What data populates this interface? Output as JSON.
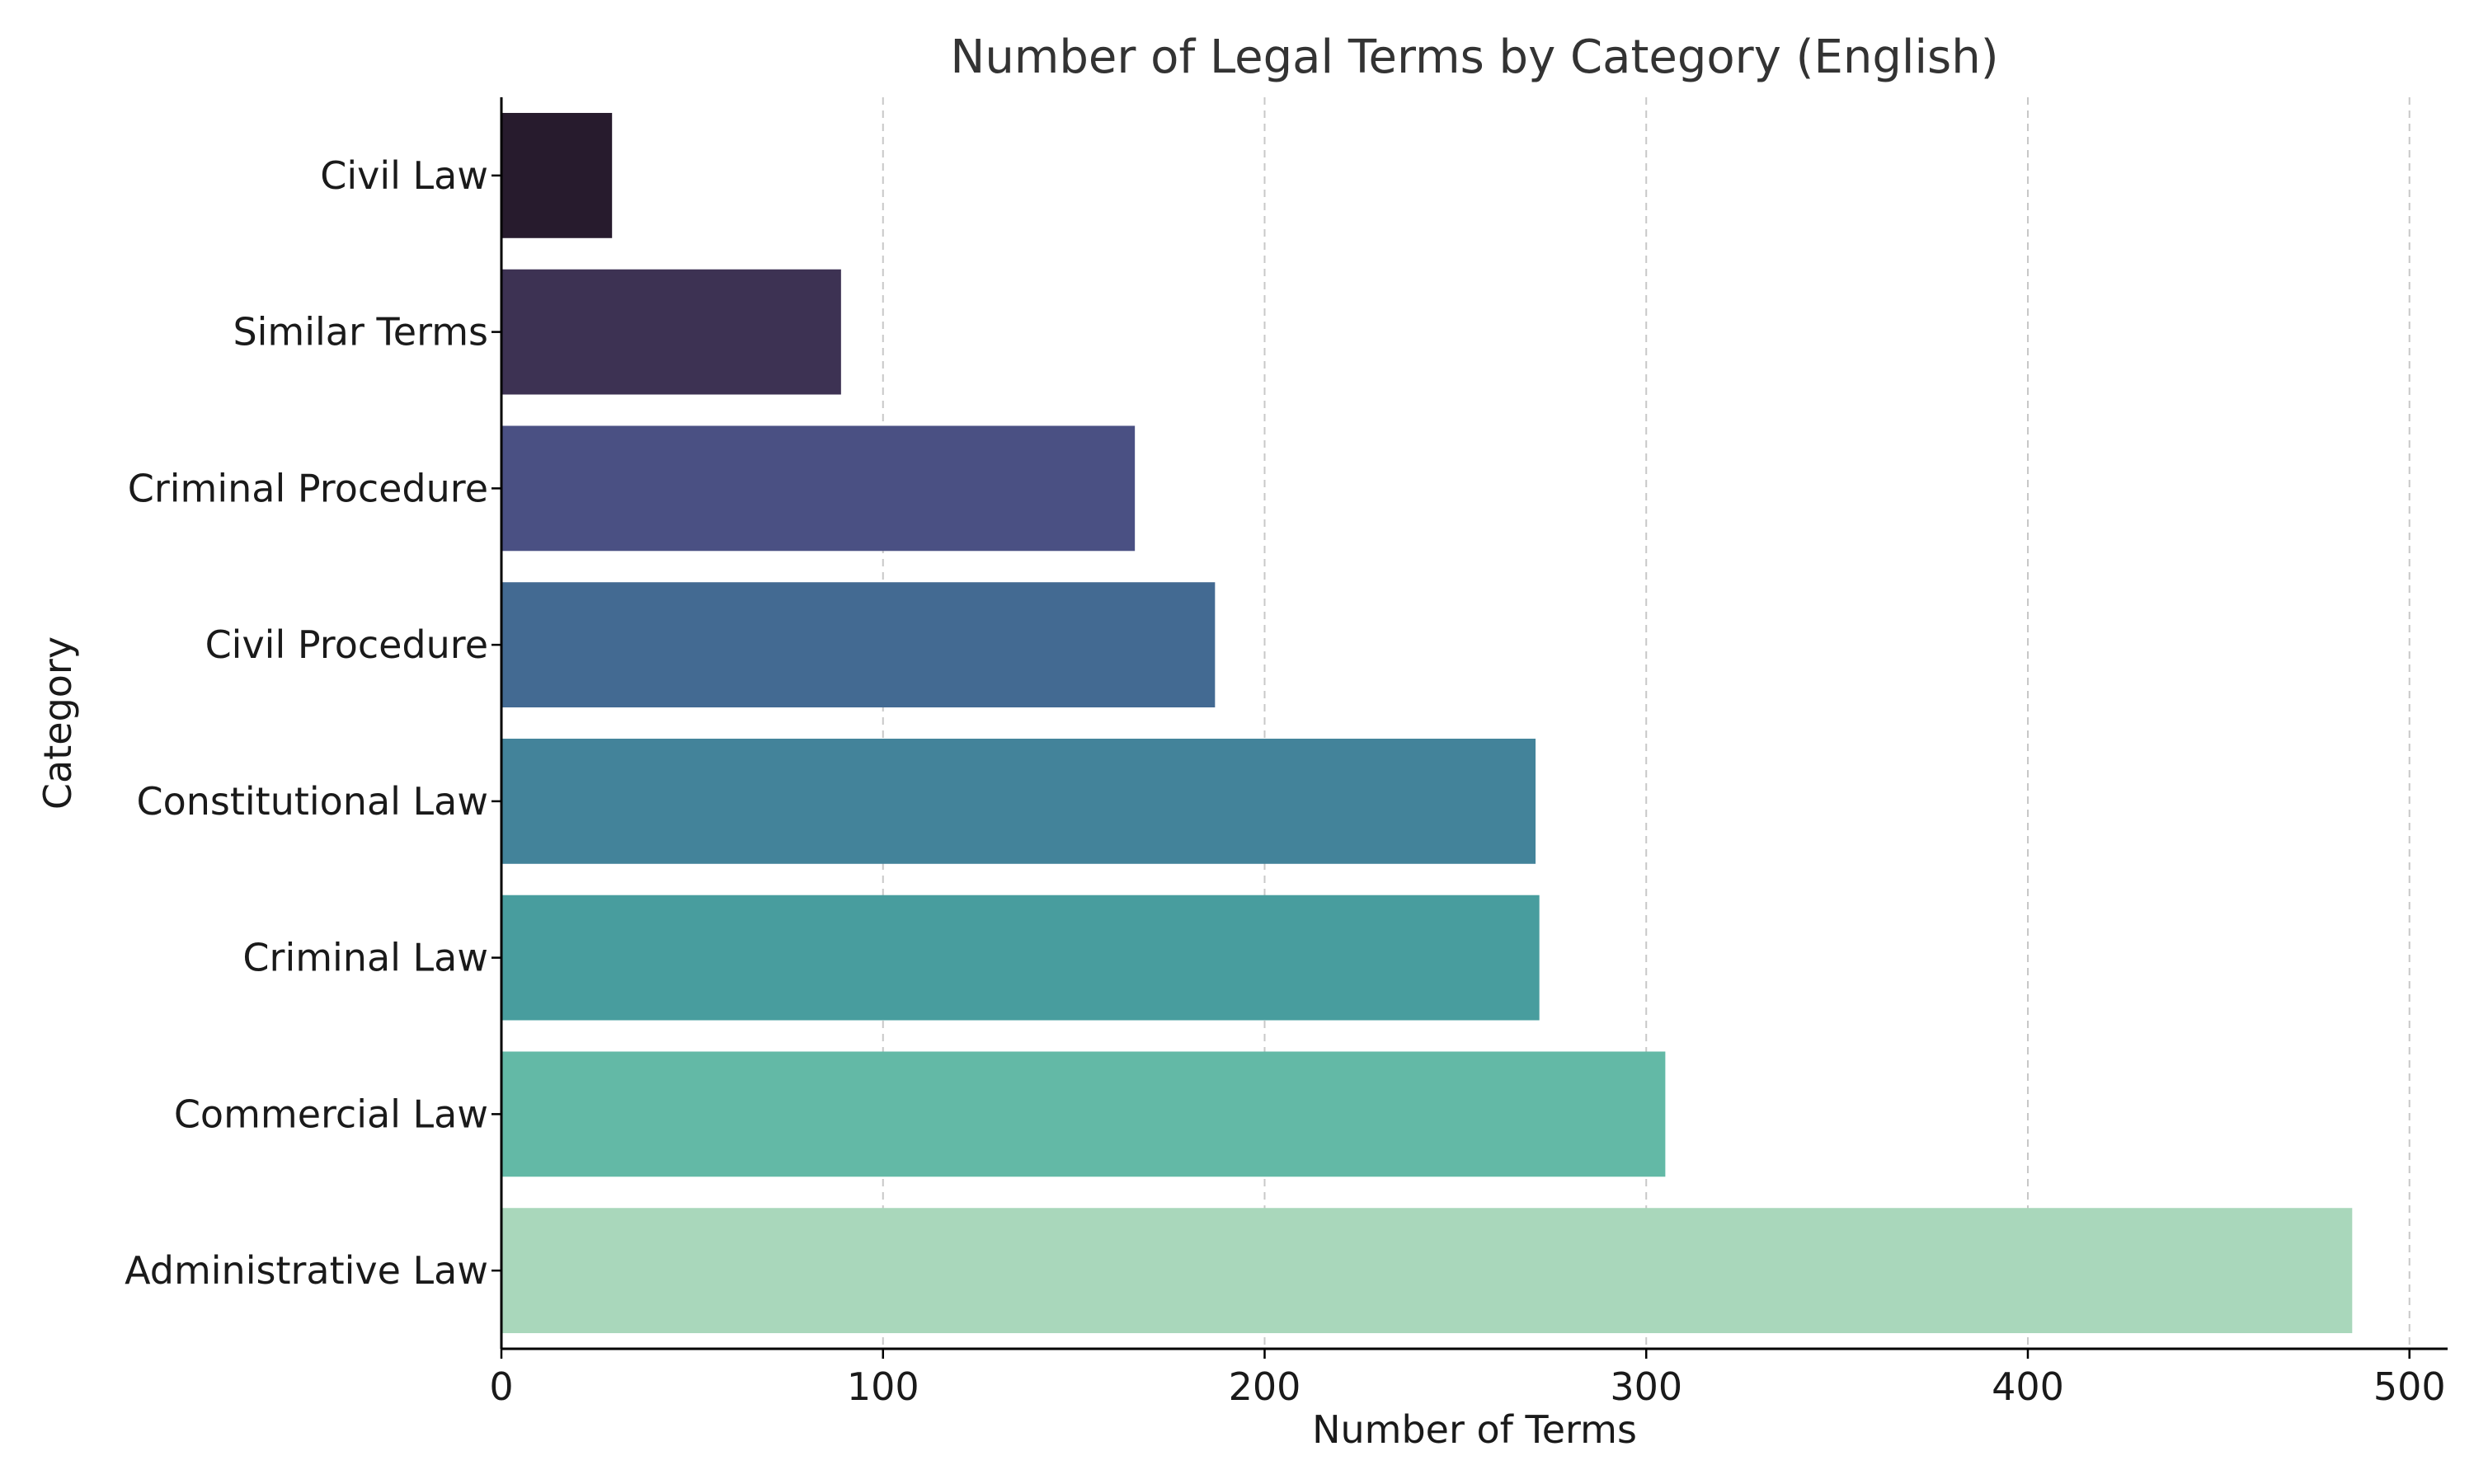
{
  "chart_data": {
    "type": "bar",
    "orientation": "horizontal",
    "title": "Number of Legal Terms by Category (English)",
    "xlabel": "Number of Terms",
    "ylabel": "Category",
    "categories": [
      "Civil Law",
      "Similar Terms",
      "Criminal Procedure",
      "Civil Procedure",
      "Constitutional Law",
      "Criminal Law",
      "Commercial Law",
      "Administrative Law"
    ],
    "values": [
      29,
      89,
      166,
      187,
      271,
      272,
      305,
      485
    ],
    "colors": [
      "#271b2d",
      "#3d3253",
      "#4a5083",
      "#436a92",
      "#43839a",
      "#489d9e",
      "#63b9a6",
      "#a9d7bb"
    ],
    "xlim": [
      0,
      510
    ],
    "xticks": [
      0,
      100,
      200,
      300,
      400,
      500
    ],
    "grid": "x-major dashed",
    "spines": "left and bottom only"
  }
}
